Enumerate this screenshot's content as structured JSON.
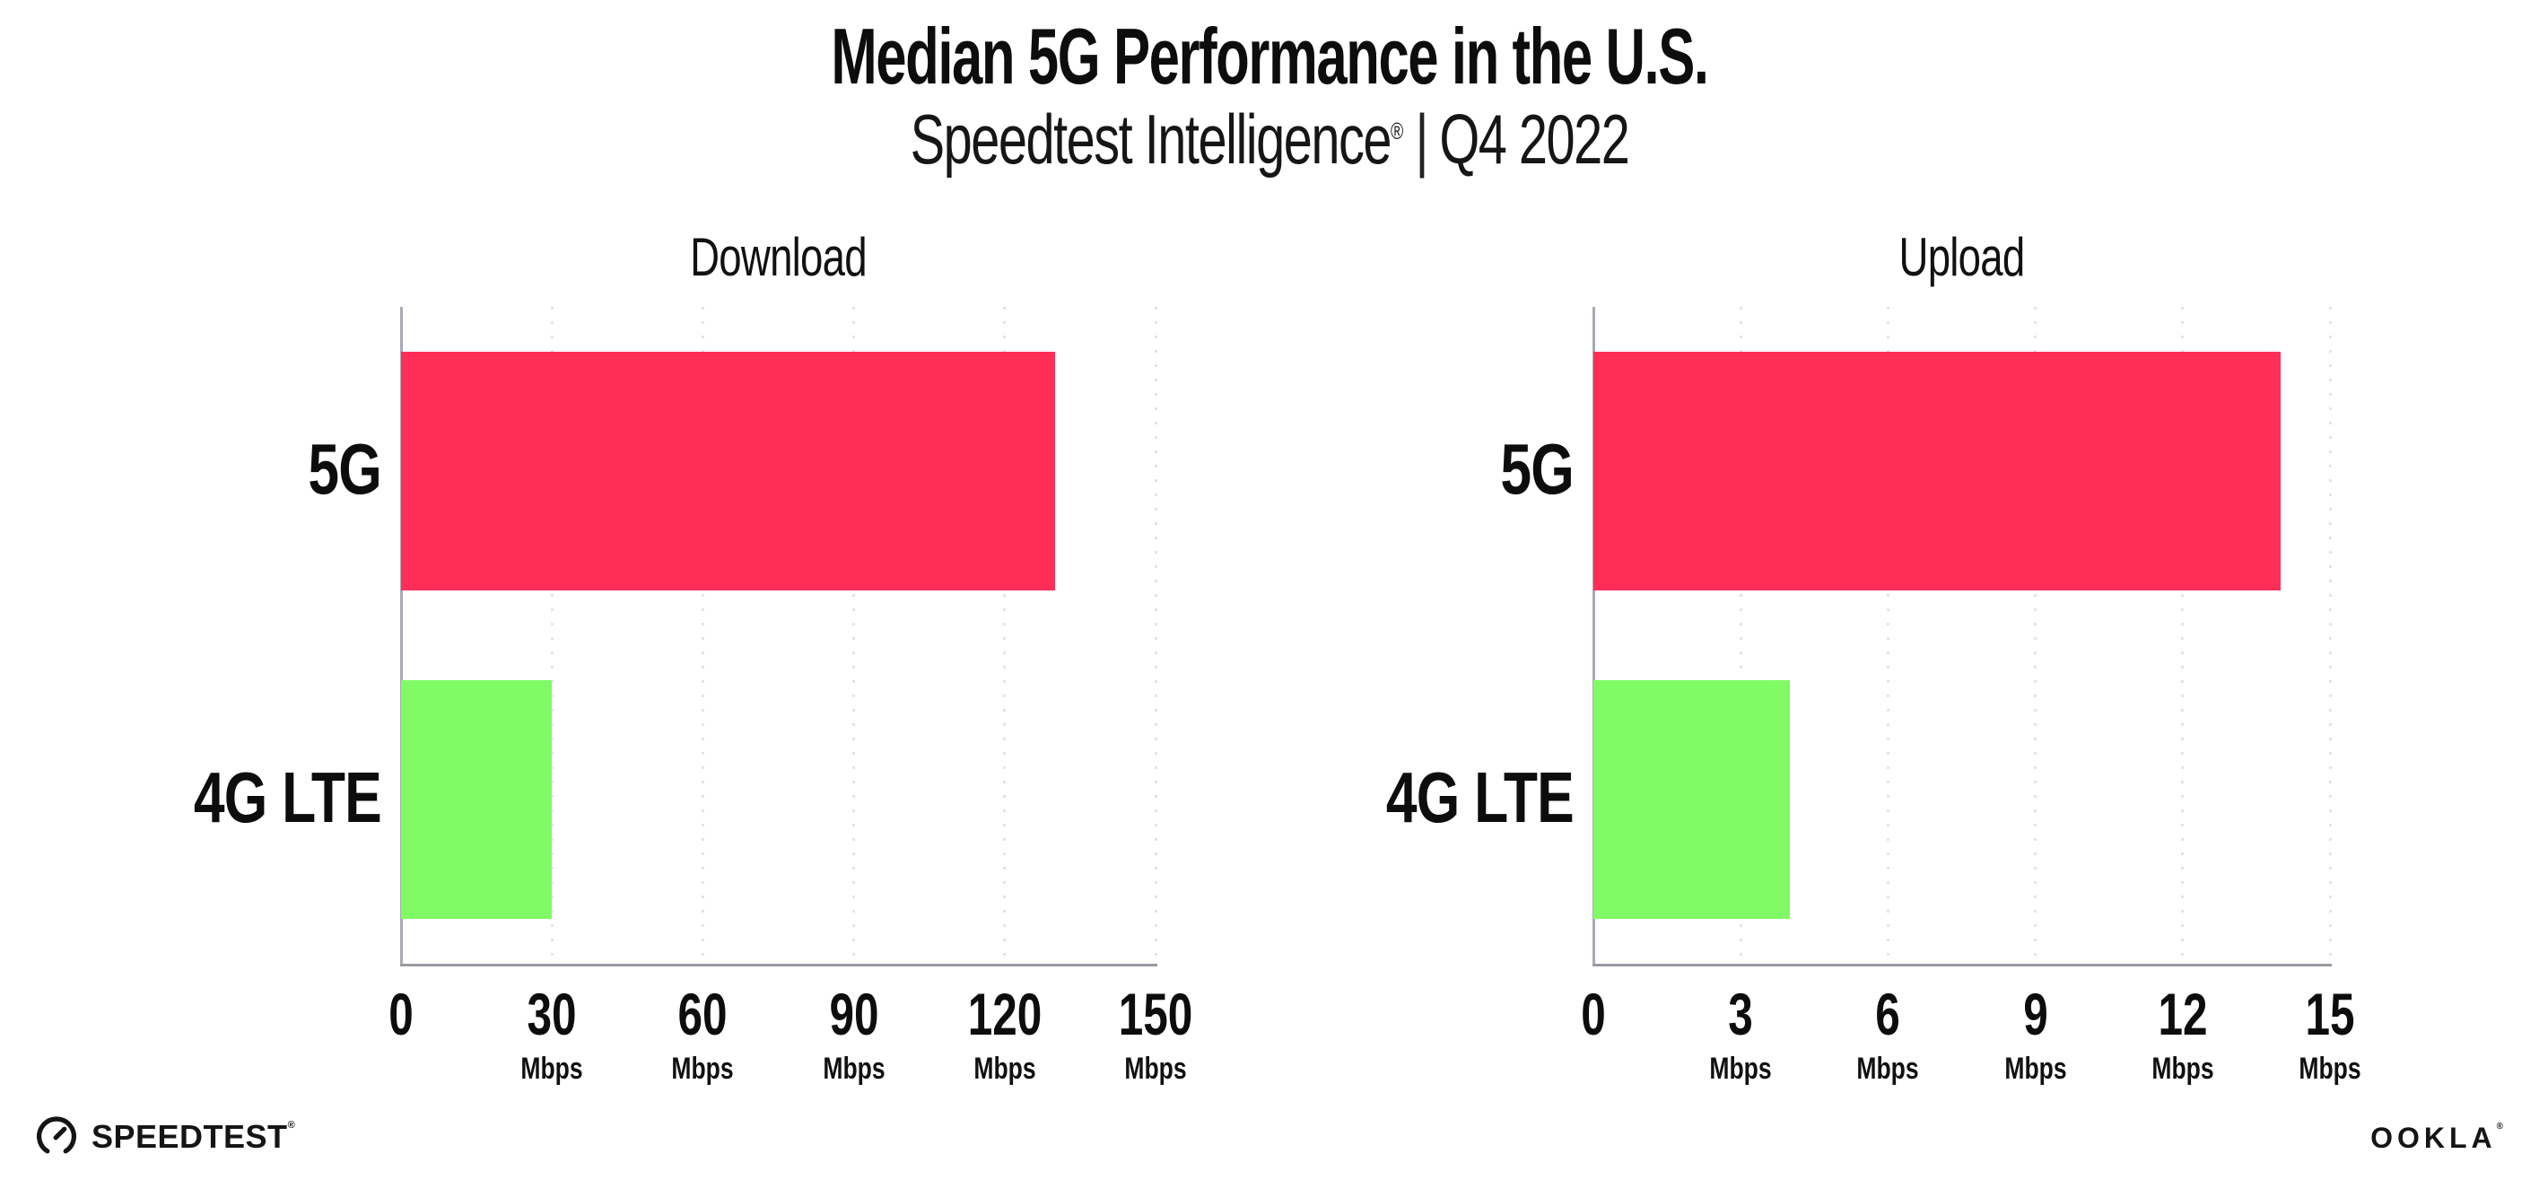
{
  "header": {
    "title": "Median 5G Performance in the U.S.",
    "subtitle_brand": "Speedtest Intelligence",
    "subtitle_reg": "®",
    "subtitle_divider": "|",
    "subtitle_period": "Q4 2022"
  },
  "footer": {
    "speedtest_logo_text": "SPEEDTEST",
    "speedtest_logo_reg": "®",
    "ookla_logo_text": "OOKLA",
    "ookla_logo_reg": "®"
  },
  "colors": {
    "bar_5g": "#ff2e59",
    "bar_4g_lte": "#80fb66",
    "axis_line": "#a9a9b4",
    "gridline": "#e3e3ee",
    "text": "#0d0d0d"
  },
  "chart_data": [
    {
      "type": "bar",
      "orientation": "horizontal",
      "title": "Download",
      "categories": [
        "5G",
        "4G LTE"
      ],
      "values": [
        130,
        30
      ],
      "unit": "Mbps",
      "xlim": [
        0,
        150
      ],
      "xticks": [
        0,
        30,
        60,
        90,
        120,
        150
      ],
      "tick_unit_label": "Mbps",
      "bar_colors": [
        "#ff2e59",
        "#80fb66"
      ],
      "grid": "dotted-vertical",
      "legend": "none"
    },
    {
      "type": "bar",
      "orientation": "horizontal",
      "title": "Upload",
      "categories": [
        "5G",
        "4G LTE"
      ],
      "values": [
        14,
        4
      ],
      "unit": "Mbps",
      "xlim": [
        0,
        15
      ],
      "xticks": [
        0,
        3,
        6,
        9,
        12,
        15
      ],
      "tick_unit_label": "Mbps",
      "bar_colors": [
        "#ff2e59",
        "#80fb66"
      ],
      "grid": "dotted-vertical",
      "legend": "none"
    }
  ]
}
